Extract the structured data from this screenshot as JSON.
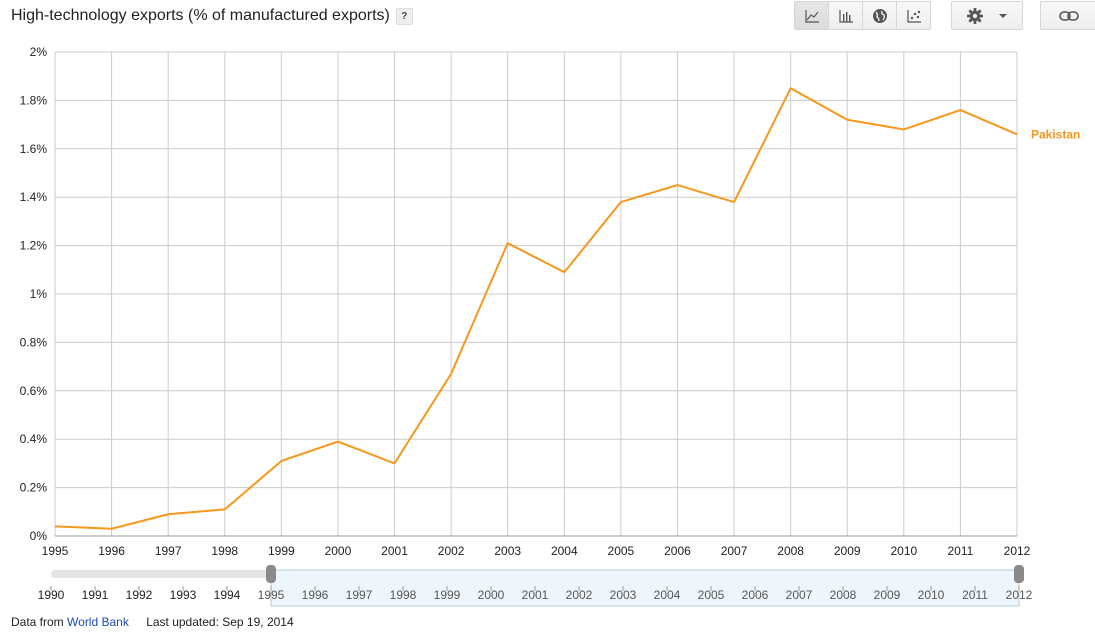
{
  "header": {
    "title": "High-technology exports (% of manufactured exports)",
    "help_label": "?"
  },
  "toolbar": {
    "icons": [
      "line-chart-icon",
      "bar-chart-icon",
      "map-icon",
      "scatter-chart-icon"
    ],
    "active": "line-chart-icon",
    "settings_icon": "gear-icon",
    "link_icon": "link-icon"
  },
  "footer": {
    "source_prefix": "Data from",
    "source_link": "World Bank",
    "updated": "Last updated: Sep 19, 2014"
  },
  "colors": {
    "series": "#f7971c",
    "grid": "#cccccc",
    "range_fill": "#eef6fb"
  },
  "chart_data": {
    "type": "line",
    "title": "High-technology exports (% of manufactured exports)",
    "x": [
      1995,
      1996,
      1997,
      1998,
      1999,
      2000,
      2001,
      2002,
      2003,
      2004,
      2005,
      2006,
      2007,
      2008,
      2009,
      2010,
      2011,
      2012
    ],
    "series": [
      {
        "name": "Pakistan",
        "values": [
          0.04,
          0.03,
          0.09,
          0.11,
          0.31,
          0.39,
          0.3,
          0.67,
          1.21,
          1.09,
          1.38,
          1.45,
          1.38,
          1.85,
          1.72,
          1.68,
          1.76,
          1.66
        ]
      }
    ],
    "ylim": [
      0,
      2
    ],
    "yticks": [
      "0%",
      "0.2%",
      "0.4%",
      "0.6%",
      "0.8%",
      "1%",
      "1.2%",
      "1.4%",
      "1.6%",
      "1.8%",
      "2%"
    ],
    "grid": true,
    "legend": "right",
    "range_selector": {
      "years": [
        1990,
        1991,
        1992,
        1993,
        1994,
        1995,
        1996,
        1997,
        1998,
        1999,
        2000,
        2001,
        2002,
        2003,
        2004,
        2005,
        2006,
        2007,
        2008,
        2009,
        2010,
        2011,
        2012
      ],
      "selected": [
        1995,
        2012
      ]
    }
  }
}
